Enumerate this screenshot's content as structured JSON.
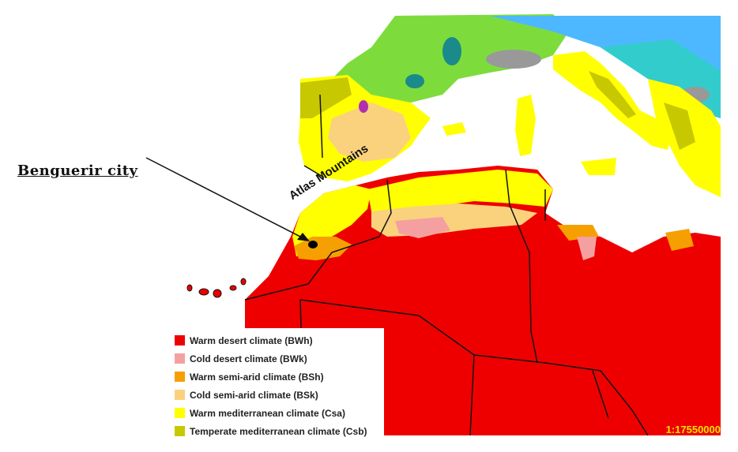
{
  "labels": {
    "city": "Benguerir city",
    "mountains": "Atlas Mountains",
    "scale": "1:17550000"
  },
  "legend": {
    "items": [
      {
        "label": "Warm desert climate (BWh)",
        "color": "#ee0000"
      },
      {
        "label": "Cold desert climate (BWk)",
        "color": "#f5a0a0"
      },
      {
        "label": "Warm semi-arid climate (BSh)",
        "color": "#f5a000"
      },
      {
        "label": "Cold semi-arid climate (BSk)",
        "color": "#fad27d"
      },
      {
        "label": "Warm mediterranean climate (Csa)",
        "color": "#ffff00"
      },
      {
        "label": "Temperate mediterranean climate (Csb)",
        "color": "#c8c800"
      }
    ]
  },
  "colors": {
    "oceanic": "#7ddc3c",
    "continental": "#33cccc",
    "humid_subtropical": "#4db8ff",
    "highland": "#999999",
    "city_marker": "#000000"
  }
}
